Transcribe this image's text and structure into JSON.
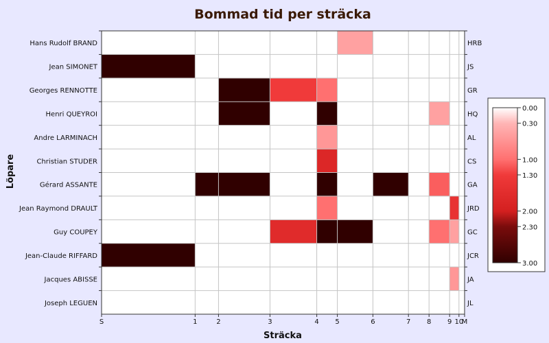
{
  "chart_data": {
    "type": "heatmap",
    "title": "Bommad tid per sträcka",
    "xlabel": "Sträcka",
    "ylabel": "Löpare",
    "x_tick_labels": [
      "S",
      "1",
      "2",
      "3",
      "4",
      "5",
      "6",
      "7",
      "8",
      "9",
      "10",
      "M"
    ],
    "x_ticks": [
      0,
      1,
      2,
      3,
      4,
      5,
      6,
      7,
      8,
      9,
      10,
      11
    ],
    "x_cum_time": [
      0,
      1.0,
      1.25,
      1.8,
      2.3,
      2.52,
      2.9,
      3.28,
      3.5,
      3.72,
      3.82,
      3.88
    ],
    "runners": [
      {
        "name": "Hans Rudolf BRAND",
        "abbr": "HRB",
        "values": [
          0,
          0,
          0,
          0,
          0,
          0.5,
          0,
          0,
          0,
          0,
          0
        ]
      },
      {
        "name": "Jean SIMONET",
        "abbr": "JS",
        "values": [
          3.0,
          0,
          0,
          0,
          0,
          0,
          0,
          0,
          0,
          0,
          0
        ]
      },
      {
        "name": "Georges RENNOTTE",
        "abbr": "GR",
        "values": [
          0,
          0,
          3.0,
          1.3,
          1.0,
          0,
          0,
          0,
          0,
          0,
          0
        ]
      },
      {
        "name": "Henri QUEYROI",
        "abbr": "HQ",
        "values": [
          0,
          0,
          3.0,
          0,
          3.0,
          0,
          0,
          0,
          0.5,
          0,
          0
        ]
      },
      {
        "name": "Andre LARMINACH",
        "abbr": "AL",
        "values": [
          0,
          0,
          0,
          0,
          0.6,
          0,
          0,
          0,
          0,
          0,
          0
        ]
      },
      {
        "name": "Christian STUDER",
        "abbr": "CS",
        "values": [
          0,
          0,
          0,
          0,
          1.8,
          0,
          0,
          0,
          0,
          0,
          0
        ]
      },
      {
        "name": "Gérard ASSANTE",
        "abbr": "GA",
        "values": [
          0,
          3.0,
          3.0,
          0,
          3.0,
          0,
          3.0,
          0,
          1.1,
          0,
          0
        ]
      },
      {
        "name": "Jean Raymond DRAULT",
        "abbr": "JRD",
        "values": [
          0,
          0,
          0,
          0,
          1.0,
          0,
          0,
          0,
          0,
          1.5,
          0
        ]
      },
      {
        "name": "Guy COUPEY",
        "abbr": "GC",
        "values": [
          0,
          0,
          0,
          1.7,
          3.0,
          3.0,
          0,
          0,
          1.0,
          0.5,
          0
        ]
      },
      {
        "name": "Jean-Claude RIFFARD",
        "abbr": "JCR",
        "values": [
          3.0,
          0,
          0,
          0,
          0,
          0,
          0,
          0,
          0,
          0,
          0
        ]
      },
      {
        "name": "Jacques ABISSE",
        "abbr": "JA",
        "values": [
          0,
          0,
          0,
          0,
          0,
          0,
          0,
          0,
          0,
          0.6,
          0
        ]
      },
      {
        "name": "Joseph LEGUEN",
        "abbr": "JL",
        "values": [
          0,
          0,
          0,
          0,
          0,
          0,
          0,
          0,
          0,
          0,
          0
        ]
      }
    ],
    "colorbar": {
      "min": 0,
      "max": 3.0,
      "tick_values": [
        0,
        0.3,
        1.0,
        1.3,
        2.0,
        2.3,
        3.0
      ],
      "tick_labels": [
        "0.00",
        "0.30",
        "1.00",
        "1.30",
        "2.00",
        "2.30",
        "3.00"
      ],
      "colors": [
        "#ffffff",
        "#ffb5b5",
        "#ff7070",
        "#f03a3a",
        "#d42020",
        "#7a0c0c",
        "#300000"
      ]
    },
    "grid": true
  }
}
